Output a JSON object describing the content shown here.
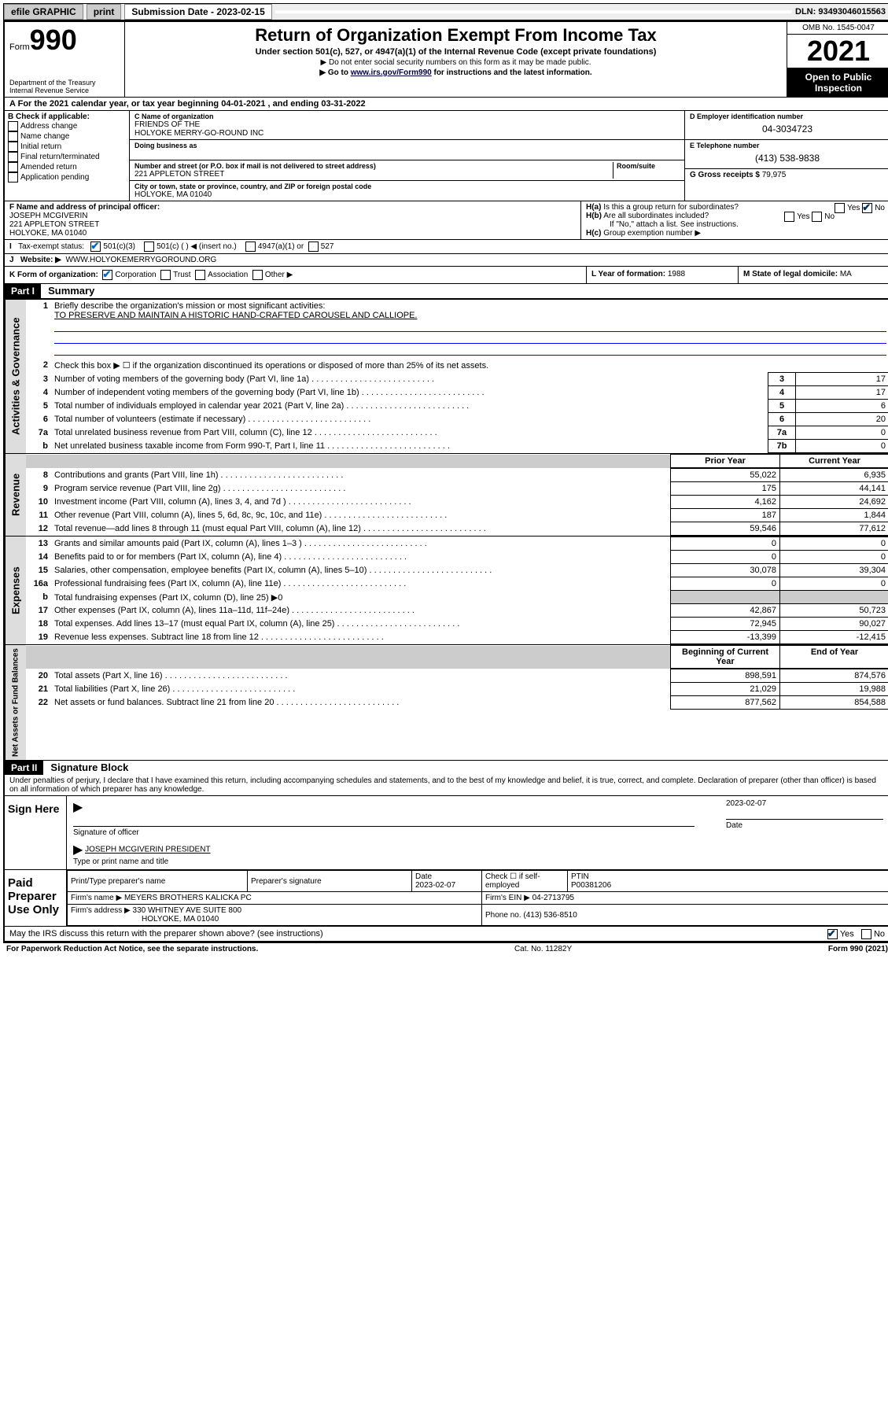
{
  "topbar": {
    "efile": "efile GRAPHIC",
    "print": "print",
    "sub_label": "Submission Date - 2023-02-15",
    "dln": "DLN: 93493046015563"
  },
  "header": {
    "form": "Form",
    "num": "990",
    "dept": "Department of the Treasury Internal Revenue Service",
    "title": "Return of Organization Exempt From Income Tax",
    "sub1": "Under section 501(c), 527, or 4947(a)(1) of the Internal Revenue Code (except private foundations)",
    "sub2": "▶ Do not enter social security numbers on this form as it may be made public.",
    "sub3_pre": "▶ Go to ",
    "sub3_link": "www.irs.gov/Form990",
    "sub3_post": " for instructions and the latest information.",
    "omb": "OMB No. 1545-0047",
    "year": "2021",
    "open": "Open to Public Inspection"
  },
  "A": {
    "text_pre": "For the 2021 calendar year, or tax year beginning ",
    "begin": "04-01-2021",
    "mid": " , and ending ",
    "end": "03-31-2022"
  },
  "B": {
    "hdr": "B Check if applicable:",
    "opts": [
      "Address change",
      "Name change",
      "Initial return",
      "Final return/terminated",
      "Amended return",
      "Application pending"
    ]
  },
  "C": {
    "lbl": "C Name of organization",
    "name": "FRIENDS OF THE\nHOLYOKE MERRY-GO-ROUND INC",
    "dba_lbl": "Doing business as",
    "addr_lbl": "Number and street (or P.O. box if mail is not delivered to street address)",
    "room_lbl": "Room/suite",
    "addr": "221 APPLETON STREET",
    "city_lbl": "City or town, state or province, country, and ZIP or foreign postal code",
    "city": "HOLYOKE, MA  01040"
  },
  "D": {
    "lbl": "D Employer identification number",
    "val": "04-3034723"
  },
  "E": {
    "lbl": "E Telephone number",
    "val": "(413) 538-9838"
  },
  "G": {
    "lbl": "G Gross receipts $",
    "val": "79,975"
  },
  "F": {
    "lbl": "F Name and address of principal officer:",
    "name": "JOSEPH MCGIVERIN",
    "addr1": "221 APPLETON STREET",
    "addr2": "HOLYOKE, MA  01040"
  },
  "H": {
    "a": "Is this a group return for subordinates?",
    "b": "Are all subordinates included?",
    "note": "If \"No,\" attach a list. See instructions.",
    "c": "Group exemption number ▶",
    "yes": "Yes",
    "no": "No"
  },
  "I": {
    "lbl": "Tax-exempt status:",
    "o1": "501(c)(3)",
    "o2": "501(c) (  ) ◀ (insert no.)",
    "o3": "4947(a)(1) or",
    "o4": "527"
  },
  "J": {
    "lbl": "Website: ▶",
    "val": "WWW.HOLYOKEMERRYGOROUND.ORG"
  },
  "K": {
    "lbl": "K Form of organization:",
    "o1": "Corporation",
    "o2": "Trust",
    "o3": "Association",
    "o4": "Other ▶"
  },
  "L": {
    "lbl": "L Year of formation:",
    "val": "1988"
  },
  "M": {
    "lbl": "M State of legal domicile:",
    "val": "MA"
  },
  "part1": {
    "hdr": "Part I",
    "title": "Summary"
  },
  "summary": {
    "q1": "Briefly describe the organization's mission or most significant activities:",
    "q1a": "TO PRESERVE AND MAINTAIN A HISTORIC HAND-CRAFTED CAROUSEL AND CALLIOPE.",
    "q2": "Check this box ▶ ☐ if the organization discontinued its operations or disposed of more than 25% of its net assets.",
    "lines_gov": [
      {
        "n": "3",
        "d": "Number of voting members of the governing body (Part VI, line 1a)",
        "box": "3",
        "v": "17"
      },
      {
        "n": "4",
        "d": "Number of independent voting members of the governing body (Part VI, line 1b)",
        "box": "4",
        "v": "17"
      },
      {
        "n": "5",
        "d": "Total number of individuals employed in calendar year 2021 (Part V, line 2a)",
        "box": "5",
        "v": "6"
      },
      {
        "n": "6",
        "d": "Total number of volunteers (estimate if necessary)",
        "box": "6",
        "v": "20"
      },
      {
        "n": "7a",
        "d": "Total unrelated business revenue from Part VIII, column (C), line 12",
        "box": "7a",
        "v": "0"
      },
      {
        "n": "b",
        "d": "Net unrelated business taxable income from Form 990-T, Part I, line 11",
        "box": "7b",
        "v": "0"
      }
    ],
    "col_prior": "Prior Year",
    "col_curr": "Current Year",
    "lines_rev": [
      {
        "n": "8",
        "d": "Contributions and grants (Part VIII, line 1h)",
        "p": "55,022",
        "c": "6,935"
      },
      {
        "n": "9",
        "d": "Program service revenue (Part VIII, line 2g)",
        "p": "175",
        "c": "44,141"
      },
      {
        "n": "10",
        "d": "Investment income (Part VIII, column (A), lines 3, 4, and 7d )",
        "p": "4,162",
        "c": "24,692"
      },
      {
        "n": "11",
        "d": "Other revenue (Part VIII, column (A), lines 5, 6d, 8c, 9c, 10c, and 11e)",
        "p": "187",
        "c": "1,844"
      },
      {
        "n": "12",
        "d": "Total revenue—add lines 8 through 11 (must equal Part VIII, column (A), line 12)",
        "p": "59,546",
        "c": "77,612"
      }
    ],
    "lines_exp": [
      {
        "n": "13",
        "d": "Grants and similar amounts paid (Part IX, column (A), lines 1–3 )",
        "p": "0",
        "c": "0"
      },
      {
        "n": "14",
        "d": "Benefits paid to or for members (Part IX, column (A), line 4)",
        "p": "0",
        "c": "0"
      },
      {
        "n": "15",
        "d": "Salaries, other compensation, employee benefits (Part IX, column (A), lines 5–10)",
        "p": "30,078",
        "c": "39,304"
      },
      {
        "n": "16a",
        "d": "Professional fundraising fees (Part IX, column (A), line 11e)",
        "p": "0",
        "c": "0"
      },
      {
        "n": "b",
        "d": "Total fundraising expenses (Part IX, column (D), line 25) ▶0",
        "p": "",
        "c": "",
        "shade": true
      },
      {
        "n": "17",
        "d": "Other expenses (Part IX, column (A), lines 11a–11d, 11f–24e)",
        "p": "42,867",
        "c": "50,723"
      },
      {
        "n": "18",
        "d": "Total expenses. Add lines 13–17 (must equal Part IX, column (A), line 25)",
        "p": "72,945",
        "c": "90,027"
      },
      {
        "n": "19",
        "d": "Revenue less expenses. Subtract line 18 from line 12",
        "p": "-13,399",
        "c": "-12,415"
      }
    ],
    "col_beg": "Beginning of Current Year",
    "col_end": "End of Year",
    "lines_net": [
      {
        "n": "20",
        "d": "Total assets (Part X, line 16)",
        "p": "898,591",
        "c": "874,576"
      },
      {
        "n": "21",
        "d": "Total liabilities (Part X, line 26)",
        "p": "21,029",
        "c": "19,988"
      },
      {
        "n": "22",
        "d": "Net assets or fund balances. Subtract line 21 from line 20",
        "p": "877,562",
        "c": "854,588"
      }
    ]
  },
  "vtabs": {
    "gov": "Activities & Governance",
    "rev": "Revenue",
    "exp": "Expenses",
    "net": "Net Assets or Fund Balances"
  },
  "part2": {
    "hdr": "Part II",
    "title": "Signature Block"
  },
  "perjury": "Under penalties of perjury, I declare that I have examined this return, including accompanying schedules and statements, and to the best of my knowledge and belief, it is true, correct, and complete. Declaration of preparer (other than officer) is based on all information of which preparer has any knowledge.",
  "sign": {
    "here": "Sign Here",
    "sig_lbl": "Signature of officer",
    "date_lbl": "Date",
    "date": "2023-02-07",
    "name": "JOSEPH MCGIVERIN PRESIDENT",
    "name_lbl": "Type or print name and title"
  },
  "prep": {
    "hdr": "Paid Preparer Use Only",
    "c1": "Print/Type preparer's name",
    "c2": "Preparer's signature",
    "c3": "Date",
    "c3v": "2023-02-07",
    "c4": "Check ☐ if self-employed",
    "c5": "PTIN",
    "c5v": "P00381206",
    "firm_lbl": "Firm's name    ▶",
    "firm": "MEYERS BROTHERS KALICKA PC",
    "ein_lbl": "Firm's EIN ▶",
    "ein": "04-2713795",
    "addr_lbl": "Firm's address ▶",
    "addr1": "330 WHITNEY AVE SUITE 800",
    "addr2": "HOLYOKE, MA  01040",
    "phone_lbl": "Phone no.",
    "phone": "(413) 536-8510"
  },
  "discuss": {
    "q": "May the IRS discuss this return with the preparer shown above? (see instructions)",
    "yes": "Yes",
    "no": "No"
  },
  "footer": {
    "l": "For Paperwork Reduction Act Notice, see the separate instructions.",
    "m": "Cat. No. 11282Y",
    "r": "Form 990 (2021)"
  }
}
